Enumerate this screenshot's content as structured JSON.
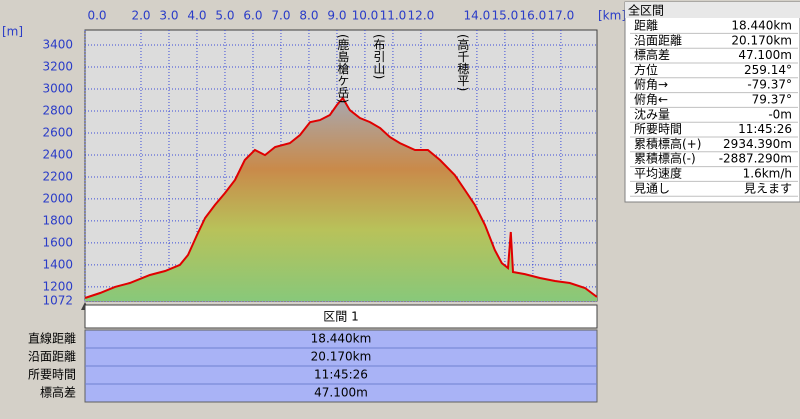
{
  "chart_data": {
    "type": "area",
    "x_unit": "[km]",
    "y_unit": "[m]",
    "x": [
      0,
      0.54,
      1.07,
      1.6,
      2.32,
      2.86,
      3.39,
      3.68,
      4.0,
      4.29,
      4.64,
      5.0,
      5.36,
      5.71,
      6.07,
      6.43,
      6.79,
      7.32,
      7.68,
      8.04,
      8.39,
      8.75,
      9.0,
      9.21,
      9.46,
      9.82,
      10.18,
      10.54,
      10.89,
      11.25,
      11.79,
      12.25,
      12.68,
      13.21,
      13.57,
      13.93,
      14.29,
      14.64,
      14.89,
      15.11,
      15.21,
      15.29,
      15.71,
      16.25,
      16.79,
      17.32,
      17.86,
      18.29
    ],
    "values": [
      1099,
      1145,
      1200,
      1236,
      1308,
      1345,
      1400,
      1490,
      1672,
      1827,
      1945,
      2054,
      2172,
      2354,
      2445,
      2399,
      2472,
      2508,
      2581,
      2699,
      2717,
      2763,
      2854,
      2917,
      2808,
      2736,
      2699,
      2645,
      2563,
      2508,
      2445,
      2445,
      2354,
      2217,
      2081,
      1945,
      1763,
      1536,
      1417,
      1372,
      1699,
      1336,
      1317,
      1281,
      1254,
      1236,
      1190,
      1108
    ],
    "color": "#e00000",
    "xlim": [
      0,
      18.29
    ],
    "ylim": [
      1072,
      3536
    ],
    "xticks": [
      {
        "value": 0,
        "label": "0.0"
      },
      {
        "value": 2,
        "label": "2.0"
      },
      {
        "value": 3,
        "label": "3.0"
      },
      {
        "value": 4,
        "label": "4.0"
      },
      {
        "value": 5,
        "label": "5.0"
      },
      {
        "value": 6,
        "label": "6.0"
      },
      {
        "value": 7,
        "label": "7.0"
      },
      {
        "value": 8,
        "label": "8.0"
      },
      {
        "value": 9,
        "label": "9.0"
      },
      {
        "value": 10,
        "label": "10.0"
      },
      {
        "value": 11,
        "label": "11.0"
      },
      {
        "value": 12,
        "label": "12.0"
      },
      {
        "value": 14,
        "label": "14.0"
      },
      {
        "value": 15,
        "label": "15.0"
      },
      {
        "value": 16,
        "label": "16.0"
      },
      {
        "value": 17,
        "label": "17.0"
      }
    ],
    "yticks": [
      1072,
      1200,
      1400,
      1600,
      1800,
      2000,
      2200,
      2400,
      2600,
      2800,
      3000,
      3200,
      3400
    ],
    "grid": true,
    "annotations": [
      {
        "text": "(鹿島槍ケ岳)",
        "x": 9.21
      },
      {
        "text": "(布引山)",
        "x": 10.5
      },
      {
        "text": "(高千穂平)",
        "x": 13.5
      }
    ]
  },
  "side_panel": {
    "title": "全区間",
    "rows": [
      [
        "距離",
        "18.440km"
      ],
      [
        "沿面距離",
        "20.170km"
      ],
      [
        "標高差",
        "47.100m"
      ],
      [
        "方位",
        "259.14°"
      ],
      [
        "俯角→",
        "-79.37°"
      ],
      [
        "俯角←",
        "79.37°"
      ],
      [
        "沈み量",
        "-0m"
      ],
      [
        "所要時間",
        "11:45:26"
      ],
      [
        "累積標高(+)",
        "2934.390m"
      ],
      [
        "累積標高(-)",
        "-2887.290m"
      ],
      [
        "平均速度",
        "1.6km/h"
      ],
      [
        "見通し",
        "見えます"
      ]
    ]
  },
  "section": {
    "header": "区間 1",
    "rows": [
      [
        "直線距離",
        "18.440km"
      ],
      [
        "沿面距離",
        "20.170km"
      ],
      [
        "所要時間",
        "11:45:26"
      ],
      [
        "標高差",
        "47.100m"
      ]
    ]
  }
}
